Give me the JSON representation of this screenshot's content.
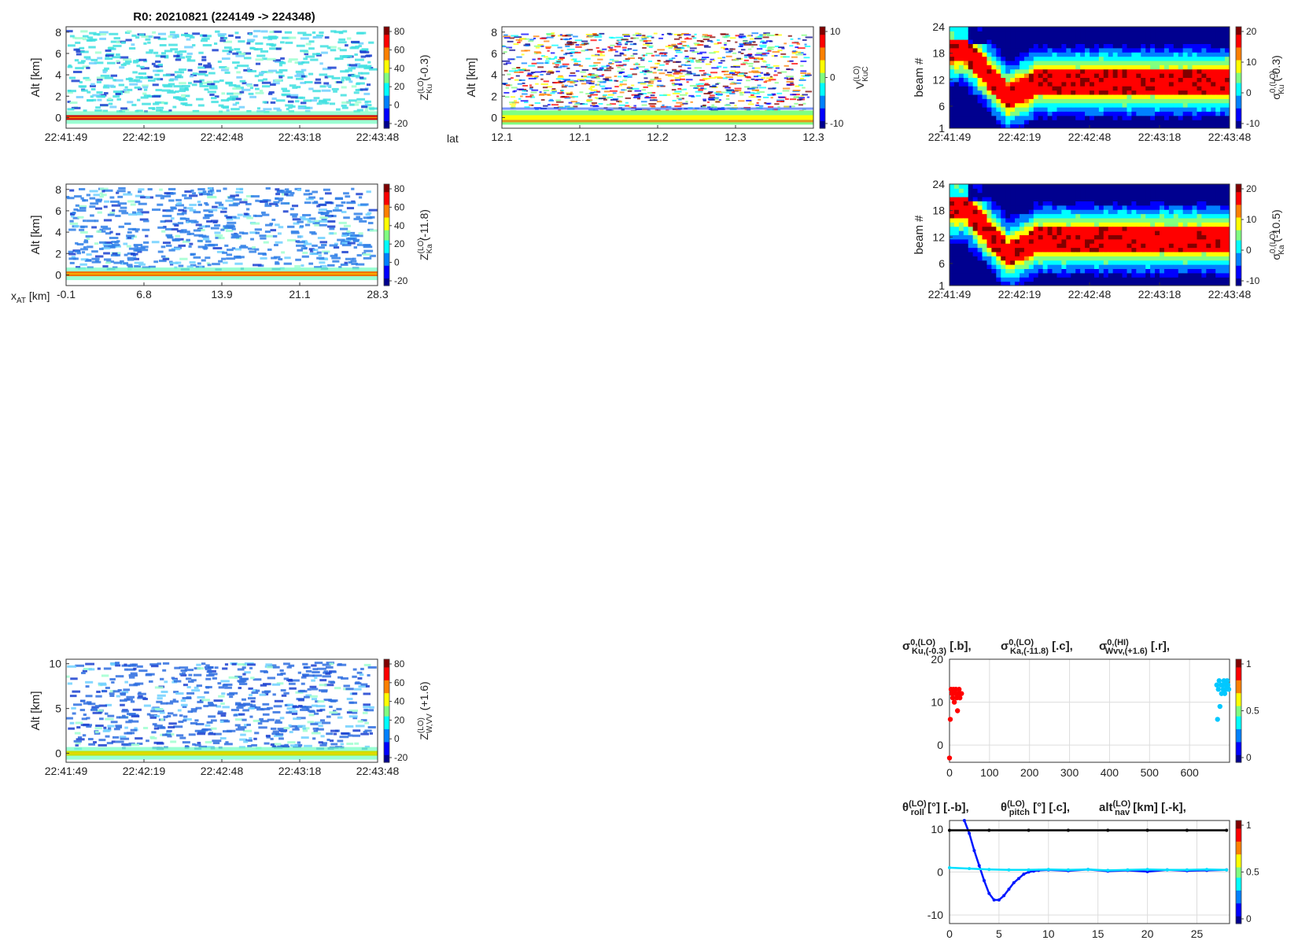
{
  "figure_title": "R0:  20210821 (224149 -> 224348)",
  "colormap": [
    "#00008f",
    "#0000ff",
    "#0080ff",
    "#00ffff",
    "#80ff80",
    "#ffff00",
    "#ff8000",
    "#ff0000",
    "#800000"
  ],
  "chart_data": [
    {
      "id": "zku",
      "type": "heatmap",
      "field": "sparse",
      "ylabel": "Alt [km]",
      "xticks": [
        "22:41:49",
        "22:42:19",
        "22:42:48",
        "22:43:18",
        "22:43:48"
      ],
      "yticks": [
        "0",
        "2",
        "4",
        "6",
        "8"
      ],
      "ylim": [
        -1,
        8.5
      ],
      "clim": [
        -30,
        80
      ],
      "cbar_ticks": [
        "80",
        "60",
        "40",
        "20",
        "0",
        "-20"
      ],
      "cbar_label": "Z(LO) Ku (-0.3)",
      "cbar_label_main": "Z",
      "cbar_label_sup": "(LO)",
      "cbar_label_sub": "Ku",
      "cbar_label_rest": " (-0.3)",
      "noise_color": "#3fe0e0",
      "surface_color": "#d00000",
      "surface_alt": 0.0
    },
    {
      "id": "vkuc",
      "type": "heatmap",
      "field": "velocity",
      "ylabel": "Alt [km]",
      "xprefix": "lat",
      "xticks": [
        "12.1",
        "12.1",
        "12.2",
        "12.3",
        "12.3"
      ],
      "yticks": [
        "0",
        "2",
        "4",
        "6",
        "8"
      ],
      "ylim": [
        -1,
        8.5
      ],
      "clim": [
        -12,
        12
      ],
      "cbar_ticks": [
        "10",
        "0",
        "-10"
      ],
      "cbar_label": "V(LO) KuC",
      "cbar_label_main": "V",
      "cbar_label_sup": "(LO)",
      "cbar_label_sub": "KuC",
      "cbar_label_rest": ""
    },
    {
      "id": "sigku",
      "type": "heatmap",
      "field": "beam",
      "ylabel": "beam #",
      "xticks": [
        "22:41:49",
        "22:42:19",
        "22:42:48",
        "22:43:18",
        "22:43:48"
      ],
      "yticks": [
        "1",
        "6",
        "12",
        "18",
        "24"
      ],
      "ylim": [
        1,
        24
      ],
      "clim": [
        -10,
        20
      ],
      "cbar_ticks": [
        "20",
        "10",
        "0",
        "-10"
      ],
      "cbar_label": "σ0,(LO) Ku (-0.3)",
      "cbar_label_main": "σ",
      "cbar_label_sup": "0,(LO)",
      "cbar_label_sub": "Ku",
      "cbar_label_rest": " (-0.3)"
    },
    {
      "id": "zka",
      "type": "heatmap",
      "field": "sparse",
      "ylabel": "Alt [km]",
      "xprefix": "x",
      "xprefix_sub": "AT",
      "xprefix_rest": " [km]",
      "xticks": [
        "-0.1",
        "6.8",
        "13.9",
        "21.1",
        "28.3"
      ],
      "yticks": [
        "0",
        "2",
        "4",
        "6",
        "8"
      ],
      "ylim": [
        -1,
        8.5
      ],
      "clim": [
        -30,
        80
      ],
      "cbar_ticks": [
        "80",
        "60",
        "40",
        "20",
        "0",
        "-20"
      ],
      "cbar_label": "Z(LO) Ka (-11.8)",
      "cbar_label_main": "Z",
      "cbar_label_sup": "(LO)",
      "cbar_label_sub": "Ka",
      "cbar_label_rest": " (-11.8)",
      "noise_color": "#2f7fe8",
      "surface_color": "#f07000",
      "surface_alt": 0.1
    },
    {
      "id": "sigka",
      "type": "heatmap",
      "field": "beam",
      "ylabel": "beam #",
      "xticks": [
        "22:41:49",
        "22:42:19",
        "22:42:48",
        "22:43:18",
        "22:43:48"
      ],
      "yticks": [
        "1",
        "6",
        "12",
        "18",
        "24"
      ],
      "ylim": [
        1,
        24
      ],
      "clim": [
        -10,
        20
      ],
      "cbar_ticks": [
        "20",
        "10",
        "0",
        "-10"
      ],
      "cbar_label": "σ0,(LO) Ka (-10.5)",
      "cbar_label_main": "σ",
      "cbar_label_sup": "0,(LO)",
      "cbar_label_sub": "Ka",
      "cbar_label_rest": " (-10.5)"
    },
    {
      "id": "zw",
      "type": "heatmap",
      "field": "sparse",
      "ylabel": "Alt [km]",
      "xticks": [
        "22:41:49",
        "22:42:19",
        "22:42:48",
        "22:43:18",
        "22:43:48"
      ],
      "yticks": [
        "0",
        "5",
        "10"
      ],
      "ylim": [
        -1,
        10.5
      ],
      "clim": [
        -30,
        80
      ],
      "cbar_ticks": [
        "80",
        "60",
        "40",
        "20",
        "0",
        "-20"
      ],
      "cbar_label": "Z(LO) W,VV (+1.6)",
      "cbar_label_main": "Z",
      "cbar_label_sup": "(LO)",
      "cbar_label_sub": "W,VV",
      "cbar_label_rest": " (+1.6)",
      "noise_color": "#2f6fe0",
      "surface_color": "#c8e000",
      "surface_alt": 0.0
    },
    {
      "id": "sigma",
      "type": "scatter",
      "title_parts": [
        {
          "main": "σ",
          "sup": "0,(LO)",
          "sub": "Ku,(-0.3)",
          "rest": " [.b],  "
        },
        {
          "main": "σ",
          "sup": "0,(LO)",
          "sub": "Ka,(-11.8)",
          "rest": " [.c],  "
        },
        {
          "main": "σ",
          "sup": "0,(HI)",
          "sub": "Wvv,(+1.6)",
          "rest": " [.r],"
        }
      ],
      "xticks": [
        "0",
        "100",
        "200",
        "300",
        "400",
        "500",
        "600"
      ],
      "yticks": [
        "0",
        "10",
        "20"
      ],
      "xlim": [
        0,
        700
      ],
      "ylim": [
        -4,
        20
      ],
      "cbar_ticks": [
        "1",
        "0.5",
        "0"
      ],
      "series": [
        {
          "name": "Wvv (red)",
          "color": "#ff0000",
          "x": [
            0,
            2,
            4,
            6,
            8,
            10,
            12,
            14,
            16,
            18,
            20,
            22,
            24,
            26,
            28,
            30
          ],
          "y": [
            -3,
            6,
            13,
            12,
            11,
            13,
            10,
            12,
            13,
            11,
            8,
            12,
            13,
            11,
            12,
            12
          ]
        },
        {
          "name": "Ku/Ka (blue-cyan)",
          "color": "#00c8ff",
          "x": [
            668,
            670,
            672,
            674,
            676,
            678,
            680,
            682,
            684,
            686,
            688,
            690,
            692,
            694,
            696,
            698
          ],
          "y": [
            14,
            6,
            13,
            15,
            9,
            14,
            12,
            14,
            13,
            15,
            12,
            14,
            13,
            15,
            14,
            13
          ]
        }
      ]
    },
    {
      "id": "nav",
      "type": "line",
      "title_parts": [
        {
          "main": "θ",
          "sup": "(LO)",
          "sub": "roll",
          "rest": " [°] [.-b],  "
        },
        {
          "main": "θ",
          "sup": "(LO)",
          "sub": "pitch",
          "rest": " [°] [.c],  "
        },
        {
          "main": "alt",
          "sup": "(LO)",
          "sub": "nav",
          "rest": " [km] [.-k],"
        }
      ],
      "xticks": [
        "0",
        "5",
        "10",
        "15",
        "20",
        "25"
      ],
      "yticks": [
        "-10",
        "0",
        "10"
      ],
      "xlim": [
        0,
        28.3
      ],
      "ylim": [
        -12,
        12
      ],
      "cbar_ticks": [
        "1",
        "0.5",
        "0"
      ],
      "series": [
        {
          "name": "roll",
          "color": "#0018ff",
          "x": [
            1.5,
            2,
            2.5,
            3,
            3.5,
            4,
            4.5,
            5,
            5.5,
            6,
            6.5,
            7,
            7.5,
            8,
            8.5,
            9,
            10,
            12,
            14,
            16,
            18,
            20,
            22,
            24,
            26,
            28
          ],
          "y": [
            12,
            9,
            5,
            1.5,
            -2,
            -5,
            -6.5,
            -6.5,
            -5.5,
            -4,
            -2.5,
            -1.5,
            -0.5,
            0,
            0.2,
            0.4,
            0.5,
            0.3,
            0.6,
            0.2,
            0.4,
            0.1,
            0.5,
            0.3,
            0.4,
            0.5
          ]
        },
        {
          "name": "pitch",
          "color": "#00e0ff",
          "x": [
            0,
            2,
            4,
            6,
            8,
            10,
            12,
            14,
            16,
            18,
            20,
            22,
            24,
            26,
            28
          ],
          "y": [
            1,
            0.8,
            0.6,
            0.5,
            0.5,
            0.6,
            0.5,
            0.6,
            0.4,
            0.5,
            0.6,
            0.5,
            0.5,
            0.6,
            0.5
          ]
        },
        {
          "name": "alt",
          "color": "#000000",
          "x": [
            0,
            4,
            8,
            12,
            16,
            20,
            24,
            28
          ],
          "y": [
            9.7,
            9.7,
            9.7,
            9.7,
            9.7,
            9.7,
            9.7,
            9.7
          ]
        }
      ]
    }
  ]
}
